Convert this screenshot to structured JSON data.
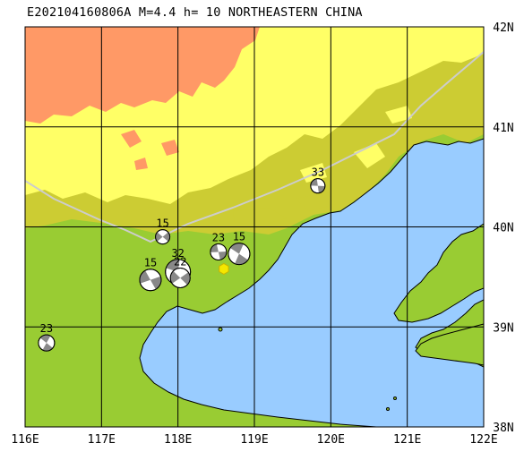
{
  "title": "E202104160806A M=4.4 h= 10 NORTHEASTERN CHINA",
  "lon_labels": [
    "116E",
    "117E",
    "118E",
    "119E",
    "120E",
    "121E",
    "122E"
  ],
  "lat_labels": [
    "42N",
    "41N",
    "40N",
    "39N",
    "38N"
  ],
  "epicenter": {
    "lon": 118.6,
    "lat": 39.58,
    "color": "#f5e700"
  },
  "mechanisms": [
    {
      "depth": "15",
      "lon": 117.8,
      "lat": 39.9
    },
    {
      "depth": "23",
      "lon": 118.53,
      "lat": 39.75
    },
    {
      "depth": "15",
      "lon": 118.8,
      "lat": 39.73
    },
    {
      "depth": "15",
      "lon": 117.64,
      "lat": 39.47
    },
    {
      "depth": "32",
      "lon": 118.0,
      "lat": 39.55
    },
    {
      "depth": "22",
      "lon": 118.03,
      "lat": 39.49
    },
    {
      "depth": "33",
      "lon": 119.83,
      "lat": 40.41
    },
    {
      "depth": "23",
      "lon": 116.28,
      "lat": 38.84
    }
  ],
  "colors": {
    "ocean": "#99ccff",
    "lowland": "#99cc33",
    "hill": "#cccc33",
    "upland": "#ffff66",
    "mountain": "#ff9966",
    "border": "#cccccc",
    "grid": "#000000"
  }
}
